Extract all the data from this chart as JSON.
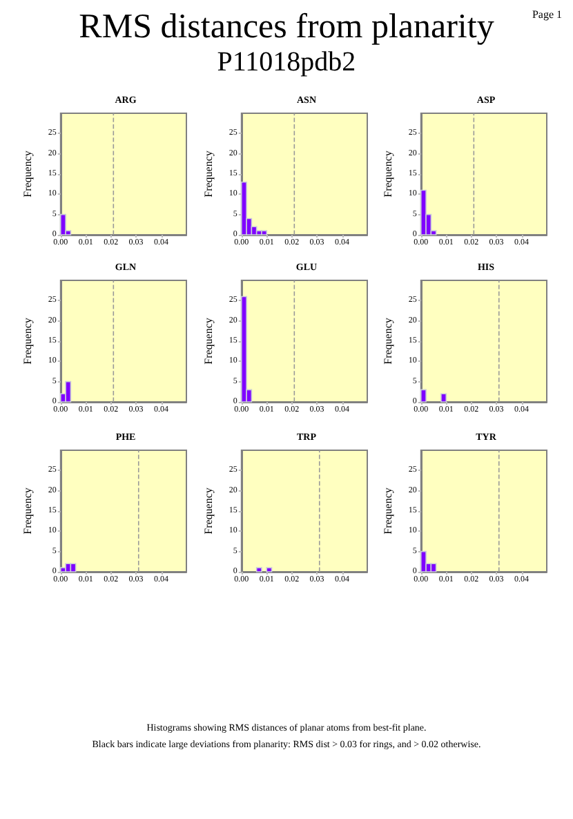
{
  "chart_data": [
    {
      "type": "other",
      "title": "RMS distances from planarity",
      "subtitle": "P11018pdb2",
      "annotations": [
        "Page 1",
        "Histograms showing RMS distances of planar atoms from best-fit plane.",
        "Black bars indicate large deviations from planarity: RMS dist > 0.03 for rings, and > 0.02 otherwise."
      ]
    },
    {
      "type": "histogram",
      "title": "ARG",
      "ylabel": "Frequency",
      "color": "#7f00ff",
      "bins": [
        0,
        0.002,
        0.004
      ],
      "values": [
        5,
        1
      ],
      "xlim": [
        0,
        0.05
      ],
      "ylim": [
        0,
        30
      ],
      "xticks": [
        {
          "value": 0,
          "label": "0.00"
        },
        {
          "value": 0.01,
          "label": "0.01"
        },
        {
          "value": 0.02,
          "label": "0.02"
        },
        {
          "value": 0.03,
          "label": "0.03"
        },
        {
          "value": 0.04,
          "label": "0.04"
        }
      ],
      "yticks": [
        0,
        5,
        10,
        15,
        20,
        25
      ],
      "ref_lines": [
        {
          "axis": "x",
          "value": 0.021,
          "color": "#999999",
          "line_style": "dashed"
        }
      ]
    },
    {
      "type": "histogram",
      "title": "ASN",
      "ylabel": "Frequency",
      "color": "#7f00ff",
      "bins": [
        0,
        0.002,
        0.004,
        0.006,
        0.008,
        0.01
      ],
      "values": [
        13,
        4,
        2,
        1,
        1
      ],
      "xlim": [
        0,
        0.05
      ],
      "ylim": [
        0,
        30
      ],
      "xticks": [
        {
          "value": 0,
          "label": "0.00"
        },
        {
          "value": 0.01,
          "label": "0.01"
        },
        {
          "value": 0.02,
          "label": "0.02"
        },
        {
          "value": 0.03,
          "label": "0.03"
        },
        {
          "value": 0.04,
          "label": "0.04"
        }
      ],
      "yticks": [
        0,
        5,
        10,
        15,
        20,
        25
      ],
      "ref_lines": [
        {
          "axis": "x",
          "value": 0.021,
          "color": "#999999",
          "line_style": "dashed"
        }
      ]
    },
    {
      "type": "histogram",
      "title": "ASP",
      "ylabel": "Frequency",
      "color": "#7f00ff",
      "bins": [
        0,
        0.002,
        0.004,
        0.006
      ],
      "values": [
        11,
        5,
        1
      ],
      "xlim": [
        0,
        0.05
      ],
      "ylim": [
        0,
        30
      ],
      "xticks": [
        {
          "value": 0,
          "label": "0.00"
        },
        {
          "value": 0.01,
          "label": "0.01"
        },
        {
          "value": 0.02,
          "label": "0.02"
        },
        {
          "value": 0.03,
          "label": "0.03"
        },
        {
          "value": 0.04,
          "label": "0.04"
        }
      ],
      "yticks": [
        0,
        5,
        10,
        15,
        20,
        25
      ],
      "ref_lines": [
        {
          "axis": "x",
          "value": 0.021,
          "color": "#999999",
          "line_style": "dashed"
        }
      ]
    },
    {
      "type": "histogram",
      "title": "GLN",
      "ylabel": "Frequency",
      "color": "#7f00ff",
      "bins": [
        0,
        0.002,
        0.004
      ],
      "values": [
        2,
        5
      ],
      "xlim": [
        0,
        0.05
      ],
      "ylim": [
        0,
        30
      ],
      "xticks": [
        {
          "value": 0,
          "label": "0.00"
        },
        {
          "value": 0.01,
          "label": "0.01"
        },
        {
          "value": 0.02,
          "label": "0.02"
        },
        {
          "value": 0.03,
          "label": "0.03"
        },
        {
          "value": 0.04,
          "label": "0.04"
        }
      ],
      "yticks": [
        0,
        5,
        10,
        15,
        20,
        25
      ],
      "ref_lines": [
        {
          "axis": "x",
          "value": 0.021,
          "color": "#999999",
          "line_style": "dashed"
        }
      ]
    },
    {
      "type": "histogram",
      "title": "GLU",
      "ylabel": "Frequency",
      "color": "#7f00ff",
      "bins": [
        0,
        0.002,
        0.004
      ],
      "values": [
        26,
        3
      ],
      "xlim": [
        0,
        0.05
      ],
      "ylim": [
        0,
        30
      ],
      "xticks": [
        {
          "value": 0,
          "label": "0.00"
        },
        {
          "value": 0.01,
          "label": "0.01"
        },
        {
          "value": 0.02,
          "label": "0.02"
        },
        {
          "value": 0.03,
          "label": "0.03"
        },
        {
          "value": 0.04,
          "label": "0.04"
        }
      ],
      "yticks": [
        0,
        5,
        10,
        15,
        20,
        25
      ],
      "ref_lines": [
        {
          "axis": "x",
          "value": 0.021,
          "color": "#999999",
          "line_style": "dashed"
        }
      ]
    },
    {
      "type": "histogram",
      "title": "HIS",
      "ylabel": "Frequency",
      "color": "#7f00ff",
      "bins": [
        0,
        0.002,
        0.004,
        0.006,
        0.008,
        0.01
      ],
      "values": [
        3,
        0,
        0,
        0,
        2
      ],
      "xlim": [
        0,
        0.05
      ],
      "ylim": [
        0,
        30
      ],
      "xticks": [
        {
          "value": 0,
          "label": "0.00"
        },
        {
          "value": 0.01,
          "label": "0.01"
        },
        {
          "value": 0.02,
          "label": "0.02"
        },
        {
          "value": 0.03,
          "label": "0.03"
        },
        {
          "value": 0.04,
          "label": "0.04"
        }
      ],
      "yticks": [
        0,
        5,
        10,
        15,
        20,
        25
      ],
      "ref_lines": [
        {
          "axis": "x",
          "value": 0.031,
          "color": "#999999",
          "line_style": "dashed"
        }
      ]
    },
    {
      "type": "histogram",
      "title": "PHE",
      "ylabel": "Frequency",
      "color": "#7f00ff",
      "bins": [
        0,
        0.002,
        0.004,
        0.006
      ],
      "values": [
        1,
        2,
        2
      ],
      "xlim": [
        0,
        0.05
      ],
      "ylim": [
        0,
        30
      ],
      "xticks": [
        {
          "value": 0,
          "label": "0.00"
        },
        {
          "value": 0.01,
          "label": "0.01"
        },
        {
          "value": 0.02,
          "label": "0.02"
        },
        {
          "value": 0.03,
          "label": "0.03"
        },
        {
          "value": 0.04,
          "label": "0.04"
        }
      ],
      "yticks": [
        0,
        5,
        10,
        15,
        20,
        25
      ],
      "ref_lines": [
        {
          "axis": "x",
          "value": 0.031,
          "color": "#999999",
          "line_style": "dashed"
        }
      ]
    },
    {
      "type": "histogram",
      "title": "TRP",
      "ylabel": "Frequency",
      "color": "#7f00ff",
      "bins": [
        0,
        0.002,
        0.004,
        0.006,
        0.008,
        0.01,
        0.012
      ],
      "values": [
        0,
        0,
        0,
        1,
        0,
        1
      ],
      "xlim": [
        0,
        0.05
      ],
      "ylim": [
        0,
        30
      ],
      "xticks": [
        {
          "value": 0,
          "label": "0.00"
        },
        {
          "value": 0.01,
          "label": "0.01"
        },
        {
          "value": 0.02,
          "label": "0.02"
        },
        {
          "value": 0.03,
          "label": "0.03"
        },
        {
          "value": 0.04,
          "label": "0.04"
        }
      ],
      "yticks": [
        0,
        5,
        10,
        15,
        20,
        25
      ],
      "ref_lines": [
        {
          "axis": "x",
          "value": 0.031,
          "color": "#999999",
          "line_style": "dashed"
        }
      ]
    },
    {
      "type": "histogram",
      "title": "TYR",
      "ylabel": "Frequency",
      "color": "#7f00ff",
      "bins": [
        0,
        0.002,
        0.004,
        0.006
      ],
      "values": [
        5,
        2,
        2
      ],
      "xlim": [
        0,
        0.05
      ],
      "ylim": [
        0,
        30
      ],
      "xticks": [
        {
          "value": 0,
          "label": "0.00"
        },
        {
          "value": 0.01,
          "label": "0.01"
        },
        {
          "value": 0.02,
          "label": "0.02"
        },
        {
          "value": 0.03,
          "label": "0.03"
        },
        {
          "value": 0.04,
          "label": "0.04"
        }
      ],
      "yticks": [
        0,
        5,
        10,
        15,
        20,
        25
      ],
      "ref_lines": [
        {
          "axis": "x",
          "value": 0.031,
          "color": "#999999",
          "line_style": "dashed"
        }
      ]
    }
  ]
}
